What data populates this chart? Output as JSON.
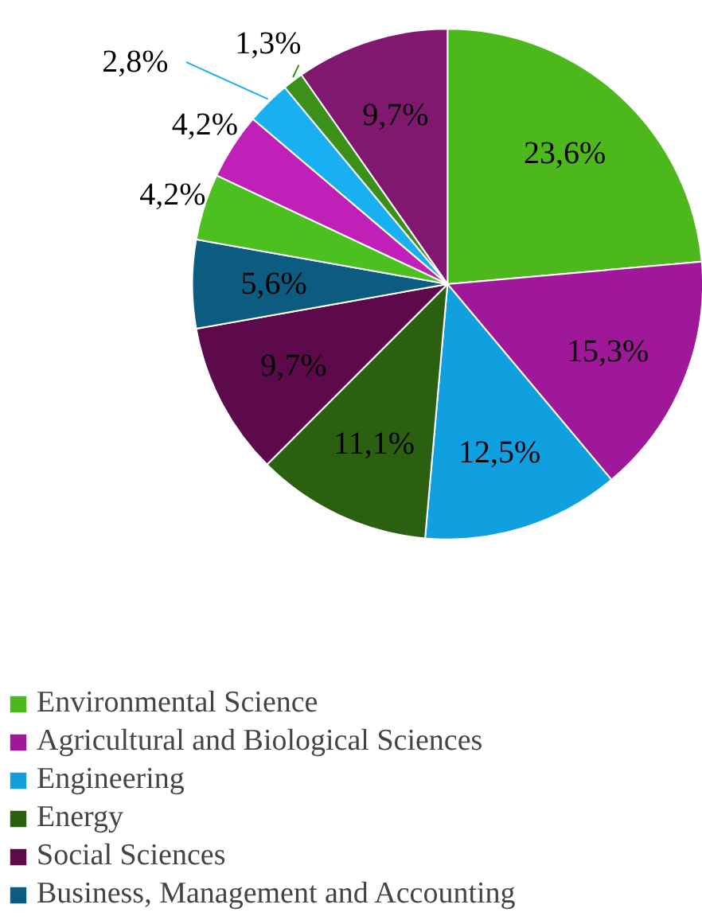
{
  "chart_data": {
    "type": "pie",
    "categories": [
      "Environmental Science",
      "Agricultural and Biological Sciences",
      "Engineering",
      "Energy",
      "Social Sciences",
      "Business, Management and Accounting",
      null,
      null,
      null,
      null,
      null
    ],
    "values": [
      23.6,
      15.3,
      12.5,
      11.1,
      9.7,
      5.6,
      4.2,
      4.2,
      2.8,
      1.3,
      9.7
    ],
    "value_labels": [
      "23,6%",
      "15,3%",
      "12,5%",
      "11,1%",
      "9,7%",
      "5,6%",
      "4,2%",
      "4,2%",
      "2,8%",
      "1,3%",
      "9,7%"
    ],
    "colors": [
      "#4cb81c",
      "#a0189a",
      "#10a0e0",
      "#2a6010",
      "#5c0a4c",
      "#0b5c80",
      "#4cc020",
      "#c020b8",
      "#18b0f0",
      "#3a9018",
      "#801870"
    ],
    "legend": "bottom"
  }
}
